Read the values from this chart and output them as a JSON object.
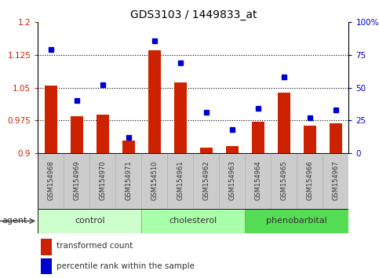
{
  "title": "GDS3103 / 1449833_at",
  "samples": [
    "GSM154968",
    "GSM154969",
    "GSM154970",
    "GSM154971",
    "GSM154510",
    "GSM154961",
    "GSM154962",
    "GSM154963",
    "GSM154964",
    "GSM154965",
    "GSM154966",
    "GSM154967"
  ],
  "transformed_count": [
    1.055,
    0.985,
    0.988,
    0.928,
    1.135,
    1.062,
    0.912,
    0.915,
    0.972,
    1.038,
    0.962,
    0.968
  ],
  "percentile_rank": [
    79,
    40,
    52,
    12,
    86,
    69,
    31,
    18,
    34,
    58,
    27,
    33
  ],
  "groups": [
    {
      "label": "control",
      "start": 0,
      "end": 3
    },
    {
      "label": "cholesterol",
      "start": 4,
      "end": 7
    },
    {
      "label": "phenobarbital",
      "start": 8,
      "end": 11
    }
  ],
  "group_colors": [
    "#ccffcc",
    "#aaffaa",
    "#55dd55"
  ],
  "ylim_left": [
    0.9,
    1.2
  ],
  "yticks_left": [
    0.9,
    0.975,
    1.05,
    1.125,
    1.2
  ],
  "ytick_labels_left": [
    "0.9",
    "0.975",
    "1.05",
    "1.125",
    "1.2"
  ],
  "ytick_labels_right": [
    "0",
    "25",
    "50",
    "75",
    "100%"
  ],
  "hlines": [
    0.975,
    1.05,
    1.125
  ],
  "bar_color": "#cc2200",
  "dot_color": "#0000cc",
  "bar_width": 0.5,
  "bar_baseline": 0.9,
  "left_tick_color": "#cc2200",
  "right_tick_color": "#0000cc",
  "agent_label": "agent",
  "legend_bar_label": "transformed count",
  "legend_dot_label": "percentile rank within the sample"
}
